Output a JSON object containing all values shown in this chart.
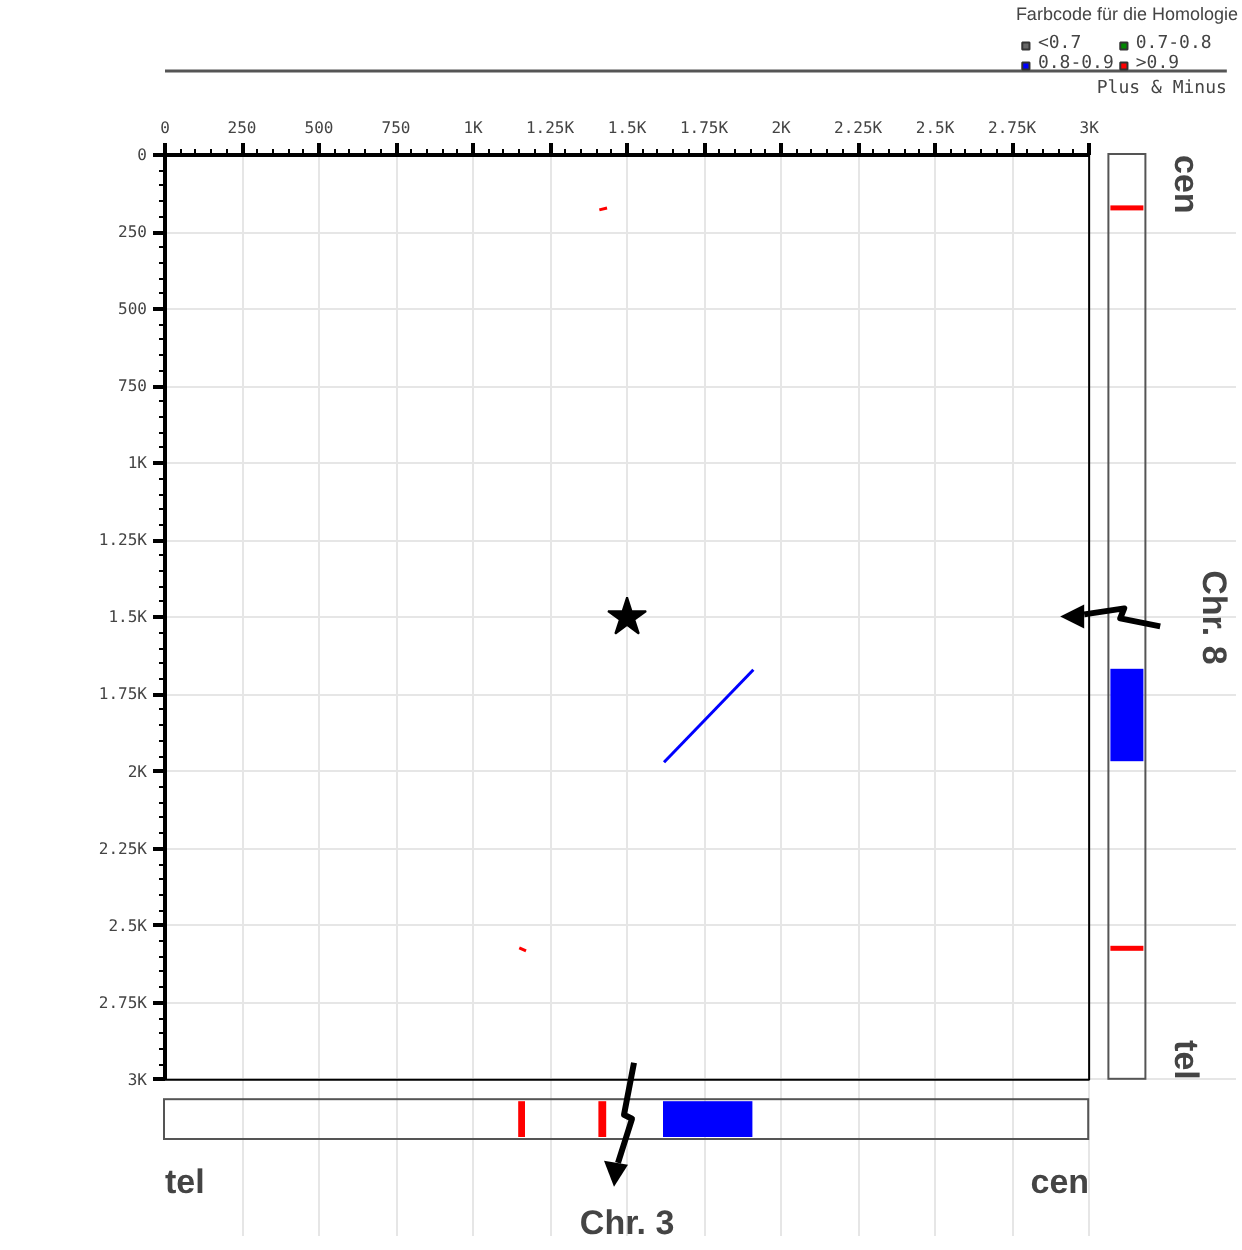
{
  "chart_data": {
    "type": "line",
    "legend_title": "Farbcode für die Homologie",
    "legend": "top right",
    "grid": true,
    "xlim": [
      0,
      3000
    ],
    "ylim": [
      3000,
      0
    ],
    "xticks": [
      0,
      250,
      500,
      750,
      {
        "value": 1000,
        "label": "1K"
      },
      {
        "value": 1250,
        "label": "1.25K"
      },
      {
        "value": 1500,
        "label": "1.5K"
      },
      {
        "value": 1750,
        "label": "1.75K"
      },
      {
        "value": 2000,
        "label": "2K"
      },
      {
        "value": 2250,
        "label": "2.25K"
      },
      {
        "value": 2500,
        "label": "2.5K"
      },
      {
        "value": 2750,
        "label": "2.75K"
      },
      {
        "value": 3000,
        "label": "3K"
      }
    ],
    "yticks": [
      0,
      250,
      500,
      750,
      {
        "value": 1000,
        "label": "1K"
      },
      {
        "value": 1250,
        "label": "1.25K"
      },
      {
        "value": 1500,
        "label": "1.5K"
      },
      {
        "value": 1750,
        "label": "1.75K"
      },
      {
        "value": 2000,
        "label": "2K"
      },
      {
        "value": 2250,
        "label": "2.25K"
      },
      {
        "value": 2500,
        "label": "2.5K"
      },
      {
        "value": 2750,
        "label": "2.75K"
      },
      {
        "value": 3000,
        "label": "3K"
      }
    ],
    "series": [
      {
        "name": "<0.7",
        "color": "#666666"
      },
      {
        "name": "0.7-0.8",
        "color": "#008800"
      },
      {
        "name": "0.8-0.9",
        "color": "#0000ff",
        "x": [
          1620,
          1910
        ],
        "values": [
          1970,
          1670
        ]
      },
      {
        "name": ">0.9",
        "color": "#ff0000",
        "x": [
          1410,
          1435,
          null,
          1150,
          1172
        ],
        "values": [
          178,
          172,
          null,
          2572,
          2582
        ]
      },
      {
        "type": "scatter",
        "marker": "star",
        "color": "#000000",
        "x": [
          1500
        ],
        "values": [
          1500
        ]
      }
    ],
    "annotations": [
      "Plus & Minus",
      "tel",
      "cen",
      "Chr. 3",
      "cen",
      "tel",
      "Chr. 8"
    ]
  }
}
